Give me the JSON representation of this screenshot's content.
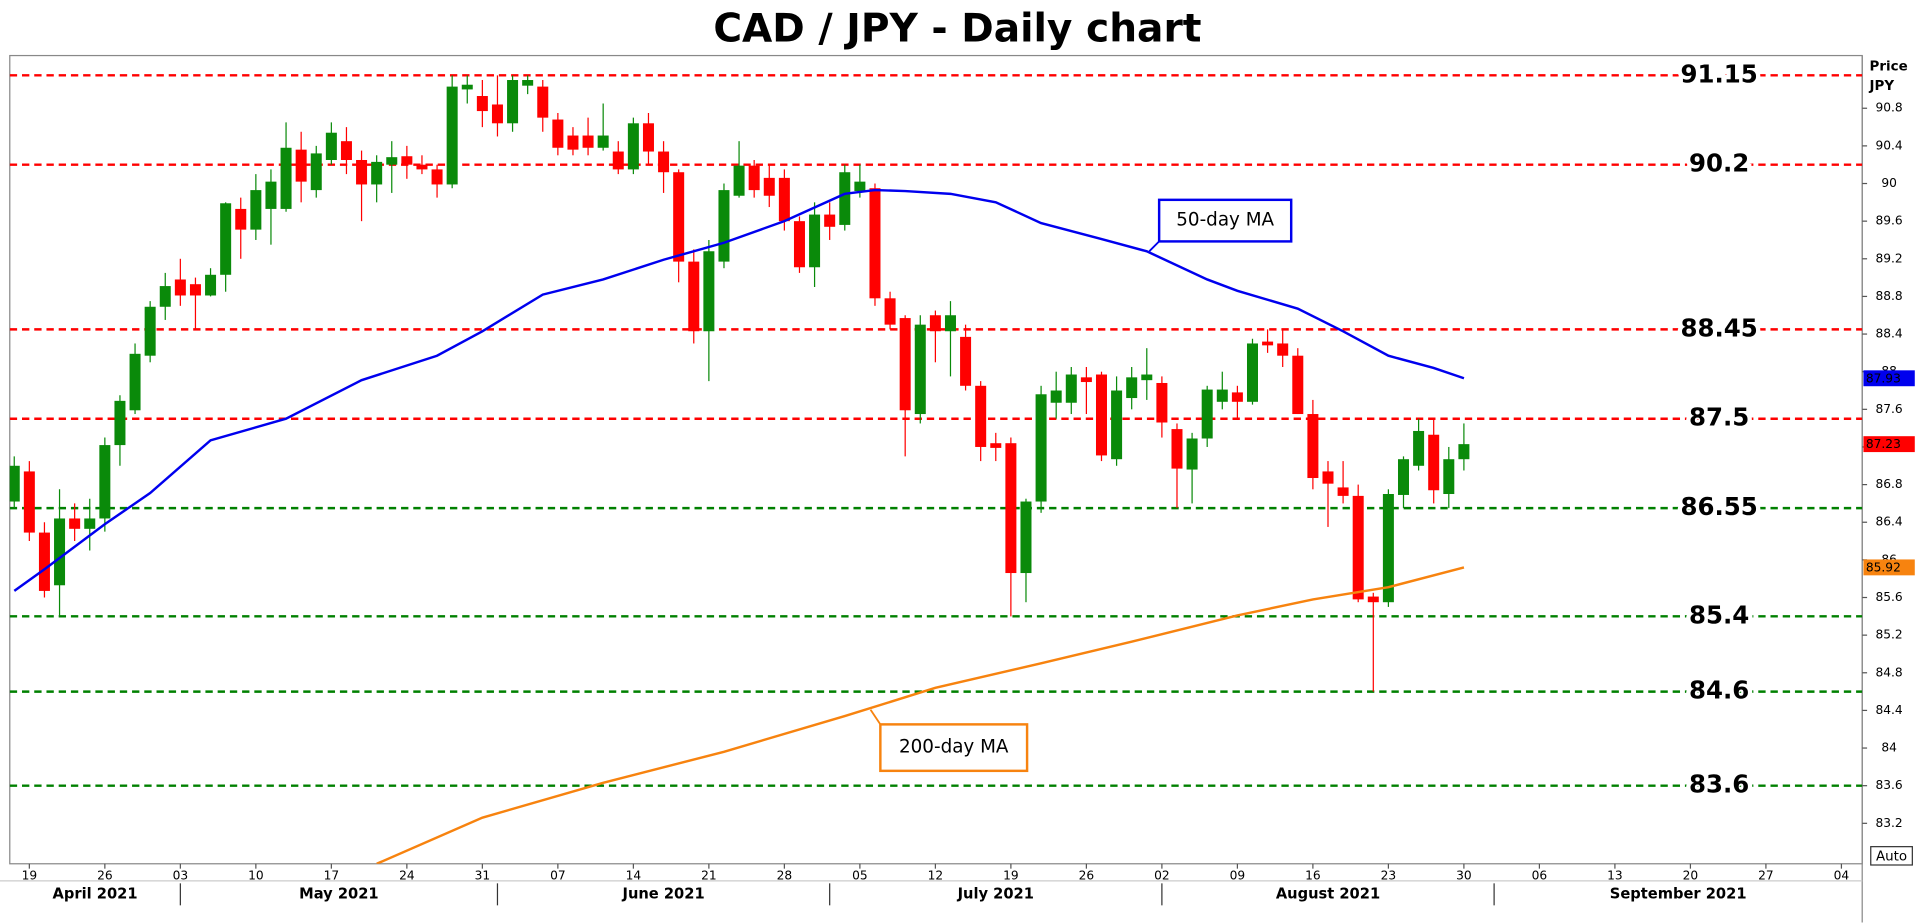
{
  "chart_data": {
    "type": "candlestick",
    "title": "CAD / JPY - Daily chart",
    "ylabel": [
      "Price",
      "JPY"
    ],
    "button": "Auto",
    "up_color": "#0a8a0a",
    "down_color": "#ff0000",
    "x": [
      "2021-04-16",
      "2021-04-19",
      "2021-04-20",
      "2021-04-21",
      "2021-04-22",
      "2021-04-23",
      "2021-04-26",
      "2021-04-27",
      "2021-04-28",
      "2021-04-29",
      "2021-04-30",
      "2021-05-03",
      "2021-05-04",
      "2021-05-05",
      "2021-05-06",
      "2021-05-07",
      "2021-05-10",
      "2021-05-11",
      "2021-05-12",
      "2021-05-13",
      "2021-05-14",
      "2021-05-17",
      "2021-05-18",
      "2021-05-19",
      "2021-05-20",
      "2021-05-21",
      "2021-05-24",
      "2021-05-25",
      "2021-05-26",
      "2021-05-27",
      "2021-05-28",
      "2021-05-31",
      "2021-06-01",
      "2021-06-02",
      "2021-06-03",
      "2021-06-04",
      "2021-06-07",
      "2021-06-08",
      "2021-06-09",
      "2021-06-10",
      "2021-06-11",
      "2021-06-14",
      "2021-06-15",
      "2021-06-16",
      "2021-06-17",
      "2021-06-18",
      "2021-06-21",
      "2021-06-22",
      "2021-06-23",
      "2021-06-24",
      "2021-06-25",
      "2021-06-28",
      "2021-06-29",
      "2021-06-30",
      "2021-07-01",
      "2021-07-02",
      "2021-07-05",
      "2021-07-06",
      "2021-07-07",
      "2021-07-08",
      "2021-07-09",
      "2021-07-12",
      "2021-07-13",
      "2021-07-14",
      "2021-07-15",
      "2021-07-16",
      "2021-07-19",
      "2021-07-20",
      "2021-07-21",
      "2021-07-22",
      "2021-07-23",
      "2021-07-26",
      "2021-07-27",
      "2021-07-28",
      "2021-07-29",
      "2021-07-30",
      "2021-08-02",
      "2021-08-03",
      "2021-08-04",
      "2021-08-05",
      "2021-08-06",
      "2021-08-09",
      "2021-08-10",
      "2021-08-11",
      "2021-08-12",
      "2021-08-13",
      "2021-08-16",
      "2021-08-17",
      "2021-08-18",
      "2021-08-19",
      "2021-08-20",
      "2021-08-23",
      "2021-08-24",
      "2021-08-25",
      "2021-08-26",
      "2021-08-27",
      "2021-08-30"
    ],
    "open": [
      86.62,
      86.94,
      86.29,
      85.73,
      86.44,
      86.33,
      86.44,
      87.22,
      87.59,
      88.17,
      88.69,
      88.98,
      88.93,
      88.81,
      89.03,
      89.73,
      89.51,
      89.73,
      89.73,
      90.36,
      89.93,
      90.25,
      90.45,
      90.25,
      89.99,
      90.2,
      90.29,
      90.2,
      90.15,
      89.99,
      91.0,
      90.93,
      90.84,
      90.64,
      91.04,
      91.03,
      90.68,
      90.51,
      90.51,
      90.38,
      90.34,
      90.15,
      90.64,
      90.34,
      90.12,
      89.17,
      88.43,
      89.17,
      89.87,
      90.19,
      90.06,
      90.06,
      89.6,
      89.11,
      89.67,
      89.56,
      89.92,
      89.95,
      88.78,
      88.57,
      87.55,
      88.6,
      88.43,
      88.37,
      87.85,
      87.24,
      87.24,
      85.86,
      86.62,
      87.67,
      87.67,
      87.94,
      87.97,
      87.07,
      87.72,
      87.91,
      87.88,
      87.39,
      86.96,
      87.29,
      87.68,
      87.78,
      87.68,
      88.32,
      88.3,
      88.17,
      87.55,
      86.94,
      86.77,
      86.68,
      85.61,
      85.55,
      86.69,
      87.0,
      87.33,
      86.7,
      87.07
    ],
    "high": [
      87.1,
      87.05,
      86.4,
      86.75,
      86.6,
      86.65,
      87.3,
      87.75,
      88.3,
      88.75,
      89.05,
      89.2,
      89.0,
      89.1,
      89.8,
      89.85,
      90.1,
      90.15,
      90.65,
      90.55,
      90.4,
      90.65,
      90.6,
      90.35,
      90.3,
      90.45,
      90.4,
      90.3,
      90.2,
      91.15,
      91.15,
      91.1,
      91.15,
      91.15,
      91.15,
      91.1,
      90.75,
      90.6,
      90.7,
      90.85,
      90.45,
      90.7,
      90.75,
      90.45,
      90.15,
      89.3,
      89.4,
      90.0,
      90.45,
      90.25,
      90.2,
      90.15,
      89.65,
      89.8,
      89.8,
      90.2,
      90.2,
      90.0,
      88.85,
      88.6,
      88.6,
      88.65,
      88.75,
      88.5,
      87.9,
      87.35,
      87.3,
      86.65,
      87.85,
      88.0,
      88.05,
      88.05,
      88.0,
      87.95,
      88.05,
      88.25,
      87.95,
      87.45,
      87.35,
      87.85,
      88.0,
      87.85,
      88.35,
      88.45,
      88.45,
      88.25,
      87.7,
      87.05,
      87.05,
      86.8,
      85.65,
      86.75,
      87.1,
      87.5,
      87.5,
      87.2,
      87.45
    ],
    "low": [
      86.55,
      86.2,
      85.6,
      85.4,
      86.2,
      86.1,
      86.3,
      87.0,
      87.55,
      88.1,
      88.55,
      88.7,
      88.45,
      88.8,
      88.85,
      89.2,
      89.4,
      89.35,
      89.7,
      89.8,
      89.85,
      90.2,
      90.1,
      89.6,
      89.8,
      89.9,
      90.05,
      90.1,
      89.85,
      89.95,
      90.85,
      90.6,
      90.5,
      90.55,
      90.95,
      90.55,
      90.3,
      90.3,
      90.3,
      90.35,
      90.1,
      90.1,
      90.2,
      89.9,
      88.95,
      88.3,
      87.9,
      89.1,
      89.85,
      89.85,
      89.75,
      89.5,
      89.05,
      88.9,
      89.4,
      89.5,
      89.85,
      88.7,
      88.45,
      87.1,
      87.45,
      88.1,
      87.95,
      87.8,
      87.05,
      87.05,
      85.4,
      85.55,
      86.5,
      87.5,
      87.55,
      87.55,
      87.05,
      87.0,
      87.6,
      87.7,
      87.3,
      86.55,
      86.6,
      87.2,
      87.6,
      87.5,
      87.65,
      88.2,
      88.05,
      87.55,
      86.75,
      86.35,
      86.6,
      85.55,
      84.6,
      85.5,
      86.55,
      86.95,
      86.6,
      86.55,
      86.95
    ],
    "close": [
      87.0,
      86.29,
      85.67,
      86.44,
      86.33,
      86.44,
      87.22,
      87.69,
      88.19,
      88.69,
      88.91,
      88.81,
      88.81,
      89.03,
      89.79,
      89.51,
      89.93,
      90.02,
      90.38,
      90.02,
      90.32,
      90.54,
      90.25,
      89.99,
      90.23,
      90.28,
      90.2,
      90.15,
      89.99,
      91.03,
      91.05,
      90.77,
      90.64,
      91.1,
      91.1,
      90.7,
      90.38,
      90.36,
      90.38,
      90.51,
      90.15,
      90.64,
      90.34,
      90.12,
      89.17,
      88.43,
      89.28,
      89.93,
      90.19,
      89.93,
      89.87,
      89.6,
      89.11,
      89.67,
      89.54,
      90.12,
      90.02,
      88.78,
      88.5,
      87.59,
      88.5,
      88.43,
      88.6,
      87.85,
      87.2,
      87.19,
      85.86,
      86.62,
      87.76,
      87.8,
      87.97,
      87.89,
      87.11,
      87.8,
      87.94,
      87.97,
      87.46,
      86.97,
      87.29,
      87.81,
      87.81,
      87.68,
      88.3,
      88.28,
      88.17,
      87.55,
      86.87,
      86.81,
      86.68,
      85.58,
      85.55,
      86.7,
      87.07,
      87.37,
      86.74,
      87.07,
      87.23
    ],
    "series": [
      {
        "name": "50-day MA",
        "color": "#0000ee",
        "x": [
          "2021-04-16",
          "2021-04-20",
          "2021-04-26",
          "2021-04-29",
          "2021-05-05",
          "2021-05-12",
          "2021-05-19",
          "2021-05-26",
          "2021-05-31",
          "2021-06-04",
          "2021-06-10",
          "2021-06-16",
          "2021-06-22",
          "2021-06-28",
          "2021-07-02",
          "2021-07-06",
          "2021-07-08",
          "2021-07-13",
          "2021-07-16",
          "2021-07-21",
          "2021-07-27",
          "2021-07-30",
          "2021-08-05",
          "2021-08-09",
          "2021-08-13",
          "2021-08-18",
          "2021-08-23",
          "2021-08-26",
          "2021-08-30"
        ],
        "values": [
          85.67,
          85.9,
          86.38,
          86.71,
          87.27,
          87.5,
          87.91,
          88.17,
          88.43,
          88.82,
          88.98,
          89.19,
          89.37,
          89.6,
          89.89,
          89.93,
          89.92,
          89.89,
          89.8,
          89.58,
          89.41,
          89.28,
          88.98,
          88.86,
          88.67,
          88.43,
          88.17,
          88.04,
          87.93
        ]
      },
      {
        "name": "200-day MA",
        "color": "#f7830f",
        "x": [
          "2021-05-20",
          "2021-05-31",
          "2021-06-10",
          "2021-06-22",
          "2021-07-02",
          "2021-07-12",
          "2021-07-21",
          "2021-07-29",
          "2021-08-09",
          "2021-08-16",
          "2021-08-23",
          "2021-08-30"
        ],
        "values": [
          82.77,
          83.26,
          83.63,
          83.96,
          84.34,
          84.64,
          84.9,
          85.13,
          85.41,
          85.58,
          85.71,
          85.92
        ]
      }
    ],
    "levels": [
      {
        "value": 91.15,
        "color": "#ff0000"
      },
      {
        "value": 90.2,
        "color": "#ff0000"
      },
      {
        "value": 88.45,
        "color": "#ff0000"
      },
      {
        "value": 87.5,
        "color": "#ff0000"
      },
      {
        "value": 86.55,
        "color": "#008000"
      },
      {
        "value": 85.4,
        "color": "#008000"
      },
      {
        "value": 84.6,
        "color": "#008000"
      },
      {
        "value": 83.6,
        "color": "#008000"
      }
    ],
    "price_tags": [
      {
        "value": 87.93,
        "color": "#0000ee"
      },
      {
        "value": 87.23,
        "color": "#ff0000"
      },
      {
        "value": 85.92,
        "color": "#f7830f"
      }
    ],
    "ylim": [
      82.77,
      91.36
    ],
    "yticks": [
      83.2,
      83.6,
      84,
      84.4,
      84.8,
      85.2,
      85.6,
      86,
      86.4,
      86.8,
      87.2,
      87.6,
      88,
      88.4,
      88.8,
      89.2,
      89.6,
      90,
      90.4,
      90.8
    ],
    "xticks": [
      {
        "value": "2021-04-19",
        "label": "19"
      },
      {
        "value": "2021-04-26",
        "label": "26"
      },
      {
        "value": "2021-05-03",
        "label": "03"
      },
      {
        "value": "2021-05-10",
        "label": "10"
      },
      {
        "value": "2021-05-17",
        "label": "17"
      },
      {
        "value": "2021-05-24",
        "label": "24"
      },
      {
        "value": "2021-05-31",
        "label": "31"
      },
      {
        "value": "2021-06-07",
        "label": "07"
      },
      {
        "value": "2021-06-14",
        "label": "14"
      },
      {
        "value": "2021-06-21",
        "label": "21"
      },
      {
        "value": "2021-06-28",
        "label": "28"
      },
      {
        "value": "2021-07-05",
        "label": "05"
      },
      {
        "value": "2021-07-12",
        "label": "12"
      },
      {
        "value": "2021-07-19",
        "label": "19"
      },
      {
        "value": "2021-07-26",
        "label": "26"
      },
      {
        "value": "2021-08-02",
        "label": "02"
      },
      {
        "value": "2021-08-09",
        "label": "09"
      },
      {
        "value": "2021-08-16",
        "label": "16"
      },
      {
        "value": "2021-08-23",
        "label": "23"
      },
      {
        "value": "2021-08-30",
        "label": "30"
      },
      {
        "value": "2021-09-06",
        "label": "06"
      },
      {
        "value": "2021-09-13",
        "label": "13"
      },
      {
        "value": "2021-09-20",
        "label": "20"
      },
      {
        "value": "2021-09-27",
        "label": "27"
      },
      {
        "value": "2021-10-04",
        "label": "04"
      }
    ],
    "months": [
      {
        "value": "2021-04-01",
        "label": "April 2021"
      },
      {
        "value": "2021-05-03",
        "label": "May 2021"
      },
      {
        "value": "2021-06-01",
        "label": "June 2021"
      },
      {
        "value": "2021-07-01",
        "label": "July 2021"
      },
      {
        "value": "2021-08-02",
        "label": "August 2021"
      },
      {
        "value": "2021-09-01",
        "label": "September 2021"
      }
    ]
  }
}
